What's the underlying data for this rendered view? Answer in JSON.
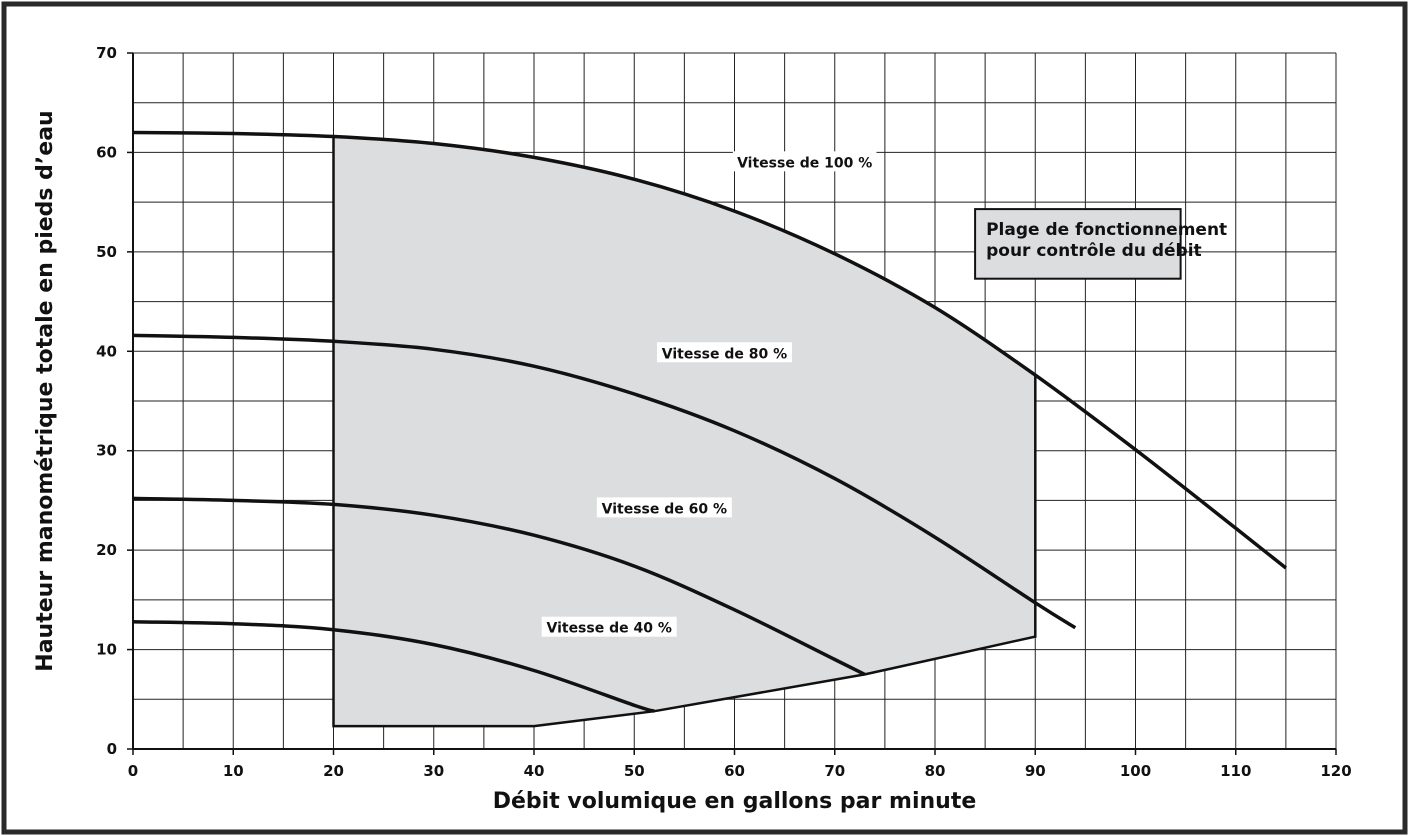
{
  "chart_data": {
    "type": "line",
    "title": "",
    "xlabel": "Débit volumique en gallons par minute",
    "ylabel": "Hauteur manométrique totale en pieds d’eau",
    "xlim": [
      0,
      120
    ],
    "ylim": [
      0,
      70
    ],
    "x_ticks": [
      0,
      10,
      20,
      30,
      40,
      50,
      60,
      70,
      80,
      90,
      100,
      110,
      120
    ],
    "y_ticks": [
      0,
      10,
      20,
      30,
      40,
      50,
      60,
      70
    ],
    "grid": true,
    "series": [
      {
        "name": "Vitesse de 100 %",
        "points": [
          [
            0,
            62
          ],
          [
            10,
            61.9
          ],
          [
            20,
            61.6
          ],
          [
            30,
            60.9
          ],
          [
            40,
            59.5
          ],
          [
            50,
            57.3
          ],
          [
            60,
            54.1
          ],
          [
            70,
            49.8
          ],
          [
            80,
            44.4
          ],
          [
            90,
            37.6
          ],
          [
            100,
            30.1
          ],
          [
            110,
            22.2
          ],
          [
            115,
            18.2
          ]
        ]
      },
      {
        "name": "Vitesse de 80 %",
        "points": [
          [
            0,
            41.6
          ],
          [
            10,
            41.4
          ],
          [
            20,
            41.0
          ],
          [
            30,
            40.2
          ],
          [
            40,
            38.5
          ],
          [
            50,
            35.7
          ],
          [
            60,
            32.0
          ],
          [
            70,
            27.2
          ],
          [
            80,
            21.3
          ],
          [
            90,
            14.7
          ],
          [
            94,
            12.2
          ]
        ]
      },
      {
        "name": "Vitesse de 60 %",
        "points": [
          [
            0,
            25.2
          ],
          [
            10,
            25.0
          ],
          [
            20,
            24.6
          ],
          [
            30,
            23.5
          ],
          [
            40,
            21.5
          ],
          [
            50,
            18.4
          ],
          [
            60,
            14.0
          ],
          [
            70,
            9.0
          ],
          [
            73,
            7.5
          ]
        ]
      },
      {
        "name": "Vitesse de 40 %",
        "points": [
          [
            0,
            12.8
          ],
          [
            10,
            12.6
          ],
          [
            20,
            12.0
          ],
          [
            30,
            10.5
          ],
          [
            40,
            7.9
          ],
          [
            50,
            4.4
          ],
          [
            52,
            3.8
          ]
        ]
      }
    ],
    "operating_range": {
      "label_lines": [
        "Plage de fonctionnement",
        "pour contrôle du débit"
      ],
      "lower_boundary": [
        [
          20,
          2.3
        ],
        [
          40,
          2.3
        ],
        [
          52,
          3.8
        ],
        [
          73,
          7.5
        ],
        [
          90,
          11.3
        ]
      ],
      "left_flow": 20,
      "right_flow": 90
    },
    "annotations": [
      {
        "text": "Vitesse de 100 %",
        "x": 67,
        "y": 59
      },
      {
        "text": "Vitesse de 80 %",
        "x": 59,
        "y": 39.8
      },
      {
        "text": "Vitesse de 60 %",
        "x": 53,
        "y": 24.2
      },
      {
        "text": "Vitesse de 40 %",
        "x": 47.5,
        "y": 12.2
      }
    ],
    "legend_box": {
      "x_range": [
        84,
        104.5
      ],
      "y_range": [
        47.3,
        54.3
      ]
    },
    "colors": {
      "curve": "#111111",
      "grid": "#222222",
      "fill": "#dcdddf",
      "frame": "#2a2a2a"
    }
  }
}
